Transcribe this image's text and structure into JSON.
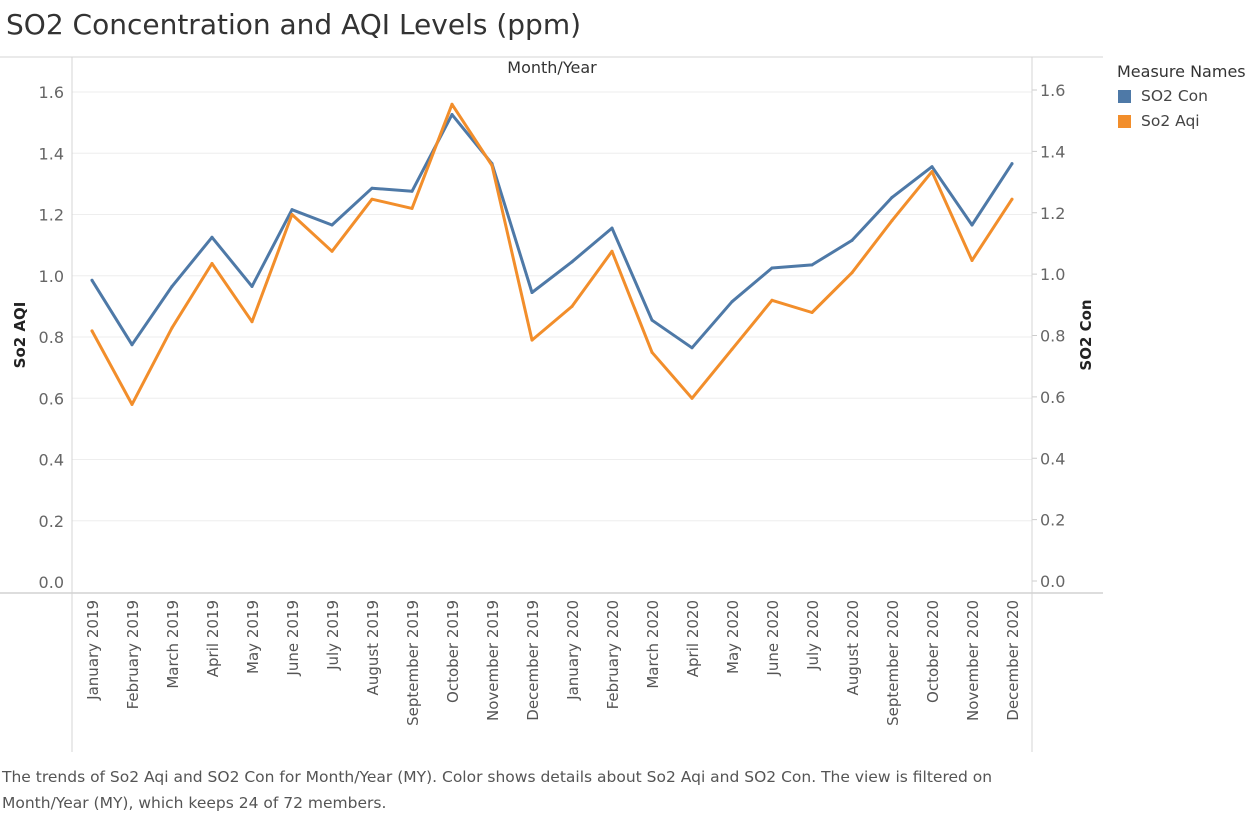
{
  "title": "SO2 Concentration and AQI Levels (ppm)",
  "caption": "The trends of So2 Aqi and SO2 Con for Month/Year (MY).  Color shows details about So2 Aqi and SO2 Con. The view is filtered on Month/Year (MY), which keeps 24 of 72 members.",
  "legend": {
    "title": "Measure Names",
    "items": [
      {
        "label": "SO2 Con",
        "color": "#4e79a7"
      },
      {
        "label": "So2 Aqi",
        "color": "#f28e2b"
      }
    ]
  },
  "chart_data": {
    "type": "line",
    "title": "SO2 Concentration and AQI Levels (ppm)",
    "xlabel": "Month/Year",
    "ylabel_left": "So2 AQI",
    "ylabel_right": "SO2 Con",
    "ylim_left": [
      0,
      1.6
    ],
    "ylim_right": [
      0,
      1.6
    ],
    "yticks_left": [
      "0.0",
      "0.2",
      "0.4",
      "0.6",
      "0.8",
      "1.0",
      "1.2",
      "1.4",
      "1.6"
    ],
    "yticks_right": [
      "0.0",
      "0.2",
      "0.4",
      "0.6",
      "0.8",
      "1.0",
      "1.2",
      "1.4",
      "1.6"
    ],
    "grid": true,
    "legend_position": "top-right",
    "categories": [
      "January 2019",
      "February 2019",
      "March 2019",
      "April 2019",
      "May 2019",
      "June 2019",
      "July 2019",
      "August 2019",
      "September 2019",
      "October 2019",
      "November 2019",
      "December 2019",
      "January 2020",
      "February 2020",
      "March 2020",
      "April 2020",
      "May 2020",
      "June 2020",
      "July 2020",
      "August 2020",
      "September 2020",
      "October 2020",
      "November 2020",
      "December 2020"
    ],
    "series": [
      {
        "name": "SO2 Con",
        "axis": "right",
        "color": "#4e79a7",
        "values": [
          0.98,
          0.77,
          0.96,
          1.12,
          0.96,
          1.21,
          1.16,
          1.28,
          1.27,
          1.52,
          1.36,
          0.94,
          1.04,
          1.15,
          0.85,
          0.76,
          0.91,
          1.02,
          1.03,
          1.11,
          1.25,
          1.35,
          1.16,
          1.36
        ]
      },
      {
        "name": "So2 Aqi",
        "axis": "left",
        "color": "#f28e2b",
        "values": [
          0.82,
          0.58,
          0.83,
          1.04,
          0.85,
          1.2,
          1.08,
          1.25,
          1.22,
          1.56,
          1.36,
          0.79,
          0.9,
          1.08,
          0.75,
          0.6,
          0.76,
          0.92,
          0.88,
          1.01,
          1.18,
          1.34,
          1.05,
          1.25
        ]
      }
    ]
  }
}
